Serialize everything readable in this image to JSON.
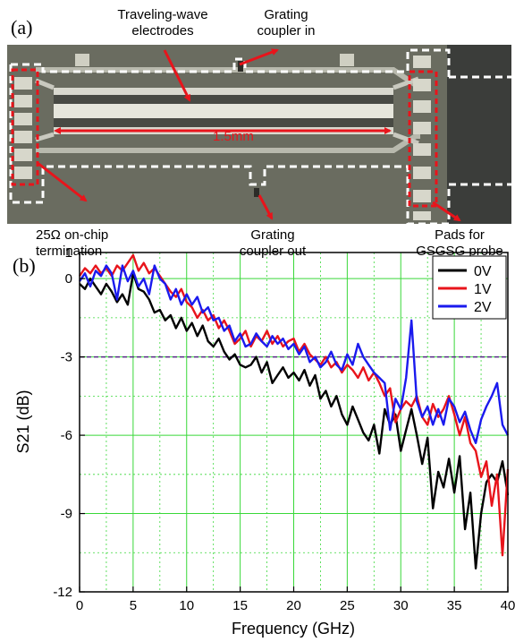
{
  "panel_a": {
    "label": "(a)",
    "annotations": {
      "traveling_wave_line1": "Traveling-wave",
      "traveling_wave_line2": "electrodes",
      "grating_in_line1": "Grating",
      "grating_in_line2": "coupler in",
      "length_label": "1.5mm",
      "termination_line1": "25Ω on-chip",
      "termination_line2": "termination",
      "grating_out_line1": "Grating",
      "grating_out_line2": "coupler out",
      "pads_line1": "Pads for",
      "pads_line2": "GSGSG probe"
    },
    "colors": {
      "arrow": "#e8141b",
      "outline_white": "#ffffff",
      "outline_red": "#e8141b"
    }
  },
  "panel_b": {
    "label": "(b)"
  },
  "chart_data": {
    "type": "line",
    "xlabel": "Frequency (GHz)",
    "ylabel": "S21 (dB)",
    "xlim": [
      0,
      40
    ],
    "ylim": [
      -12,
      1
    ],
    "xticks": [
      0,
      5,
      10,
      15,
      20,
      25,
      30,
      35,
      40
    ],
    "yticks": [
      0,
      -3,
      -6,
      -9,
      -12
    ],
    "yticks_extra_label": 1,
    "grid": true,
    "legend_position": "top-right",
    "reference_line": {
      "y": -3,
      "style": "dashed",
      "color": "#5a2a8a"
    },
    "series": [
      {
        "name": "0V",
        "color": "#000000",
        "x": [
          0,
          0.5,
          1,
          1.5,
          2,
          2.5,
          3,
          3.5,
          4,
          4.5,
          5,
          5.5,
          6,
          6.5,
          7,
          7.5,
          8,
          8.5,
          9,
          9.5,
          10,
          10.5,
          11,
          11.5,
          12,
          12.5,
          13,
          13.5,
          14,
          14.5,
          15,
          15.5,
          16,
          16.5,
          17,
          17.5,
          18,
          18.5,
          19,
          19.5,
          20,
          20.5,
          21,
          21.5,
          22,
          22.5,
          23,
          23.5,
          24,
          24.5,
          25,
          25.5,
          26,
          26.5,
          27,
          27.5,
          28,
          28.5,
          29,
          29.5,
          30,
          30.5,
          31,
          31.5,
          32,
          32.5,
          33,
          33.5,
          34,
          34.5,
          35,
          35.5,
          36,
          36.5,
          37,
          37.5,
          38,
          38.5,
          39,
          39.5,
          40
        ],
        "values": [
          -0.2,
          -0.4,
          0.0,
          -0.3,
          -0.6,
          -0.2,
          -0.5,
          -0.9,
          -0.6,
          -1.0,
          0.2,
          -0.4,
          -0.5,
          -0.8,
          -1.3,
          -1.2,
          -1.6,
          -1.4,
          -1.9,
          -1.5,
          -2.0,
          -1.7,
          -2.2,
          -1.8,
          -2.4,
          -2.6,
          -2.3,
          -2.8,
          -3.1,
          -2.9,
          -3.3,
          -3.4,
          -3.3,
          -3.0,
          -3.6,
          -3.2,
          -4.0,
          -3.7,
          -3.4,
          -3.8,
          -3.6,
          -3.9,
          -3.5,
          -4.1,
          -3.7,
          -4.6,
          -4.3,
          -4.9,
          -4.5,
          -5.2,
          -5.6,
          -4.9,
          -5.4,
          -5.9,
          -6.2,
          -5.6,
          -6.7,
          -5.0,
          -5.6,
          -5.2,
          -6.6,
          -5.8,
          -5.0,
          -6.0,
          -7.1,
          -6.1,
          -8.8,
          -7.4,
          -8.0,
          -6.9,
          -8.2,
          -6.8,
          -9.6,
          -8.2,
          -11.1,
          -9.0,
          -7.8,
          -7.5,
          -7.8,
          -7.0,
          -8.3
        ]
      },
      {
        "name": "1V",
        "color": "#e8141b",
        "x": [
          0,
          0.5,
          1,
          1.5,
          2,
          2.5,
          3,
          3.5,
          4,
          4.5,
          5,
          5.5,
          6,
          6.5,
          7,
          7.5,
          8,
          8.5,
          9,
          9.5,
          10,
          10.5,
          11,
          11.5,
          12,
          12.5,
          13,
          13.5,
          14,
          14.5,
          15,
          15.5,
          16,
          16.5,
          17,
          17.5,
          18,
          18.5,
          19,
          19.5,
          20,
          20.5,
          21,
          21.5,
          22,
          22.5,
          23,
          23.5,
          24,
          24.5,
          25,
          25.5,
          26,
          26.5,
          27,
          27.5,
          28,
          28.5,
          29,
          29.5,
          30,
          30.5,
          31,
          31.5,
          32,
          32.5,
          33,
          33.5,
          34,
          34.5,
          35,
          35.5,
          36,
          36.5,
          37,
          37.5,
          38,
          38.5,
          39,
          39.5,
          40
        ],
        "values": [
          0.1,
          0.4,
          0.2,
          0.5,
          0.2,
          0.4,
          0.1,
          0.5,
          0.3,
          0.6,
          0.9,
          0.3,
          0.6,
          0.2,
          0.4,
          0.1,
          -0.2,
          -0.5,
          -0.7,
          -0.4,
          -0.9,
          -1.1,
          -1.5,
          -1.2,
          -1.6,
          -1.4,
          -1.9,
          -1.6,
          -2.0,
          -2.5,
          -2.3,
          -2.0,
          -2.6,
          -2.2,
          -2.4,
          -2.0,
          -2.5,
          -2.2,
          -2.6,
          -2.4,
          -2.3,
          -2.8,
          -2.5,
          -2.9,
          -3.1,
          -3.3,
          -3.0,
          -3.4,
          -3.2,
          -3.6,
          -3.3,
          -3.5,
          -3.8,
          -3.4,
          -3.9,
          -3.6,
          -4.0,
          -4.5,
          -4.2,
          -5.5,
          -5.0,
          -4.7,
          -4.9,
          -4.5,
          -5.3,
          -5.6,
          -4.8,
          -5.3,
          -5.0,
          -4.5,
          -5.2,
          -6.0,
          -5.3,
          -6.3,
          -6.6,
          -7.6,
          -7.0,
          -8.7,
          -7.5,
          -10.6,
          -7.3
        ]
      },
      {
        "name": "2V",
        "color": "#1a1aee",
        "x": [
          0,
          0.5,
          1,
          1.5,
          2,
          2.5,
          3,
          3.5,
          4,
          4.5,
          5,
          5.5,
          6,
          6.5,
          7,
          7.5,
          8,
          8.5,
          9,
          9.5,
          10,
          10.5,
          11,
          11.5,
          12,
          12.5,
          13,
          13.5,
          14,
          14.5,
          15,
          15.5,
          16,
          16.5,
          17,
          17.5,
          18,
          18.5,
          19,
          19.5,
          20,
          20.5,
          21,
          21.5,
          22,
          22.5,
          23,
          23.5,
          24,
          24.5,
          25,
          25.5,
          26,
          26.5,
          27,
          27.5,
          28,
          28.5,
          29,
          29.5,
          30,
          30.5,
          31,
          31.5,
          32,
          32.5,
          33,
          33.5,
          34,
          34.5,
          35,
          35.5,
          36,
          36.5,
          37,
          37.5,
          38,
          38.5,
          39,
          39.5,
          40
        ],
        "values": [
          -0.1,
          0.2,
          -0.3,
          0.3,
          0.1,
          0.5,
          0.2,
          -0.8,
          0.5,
          -0.1,
          0.3,
          -0.3,
          0.0,
          -0.6,
          0.5,
          0.0,
          -0.2,
          -0.8,
          -0.4,
          -1.0,
          -0.6,
          -1.0,
          -0.7,
          -1.3,
          -1.1,
          -1.6,
          -1.5,
          -2.0,
          -1.8,
          -2.4,
          -2.1,
          -2.6,
          -2.5,
          -2.1,
          -2.4,
          -2.6,
          -2.2,
          -2.5,
          -2.3,
          -2.7,
          -2.5,
          -2.9,
          -2.6,
          -3.2,
          -3.0,
          -3.4,
          -3.2,
          -2.8,
          -3.3,
          -3.5,
          -2.9,
          -3.3,
          -2.5,
          -3.0,
          -3.3,
          -3.6,
          -3.8,
          -4.0,
          -5.8,
          -4.6,
          -5.0,
          -3.8,
          -1.6,
          -4.7,
          -5.3,
          -4.9,
          -5.6,
          -5.0,
          -5.6,
          -4.6,
          -4.9,
          -5.5,
          -5.1,
          -5.8,
          -6.3,
          -5.4,
          -4.9,
          -4.5,
          -4.0,
          -5.6,
          -6.0
        ]
      }
    ]
  }
}
